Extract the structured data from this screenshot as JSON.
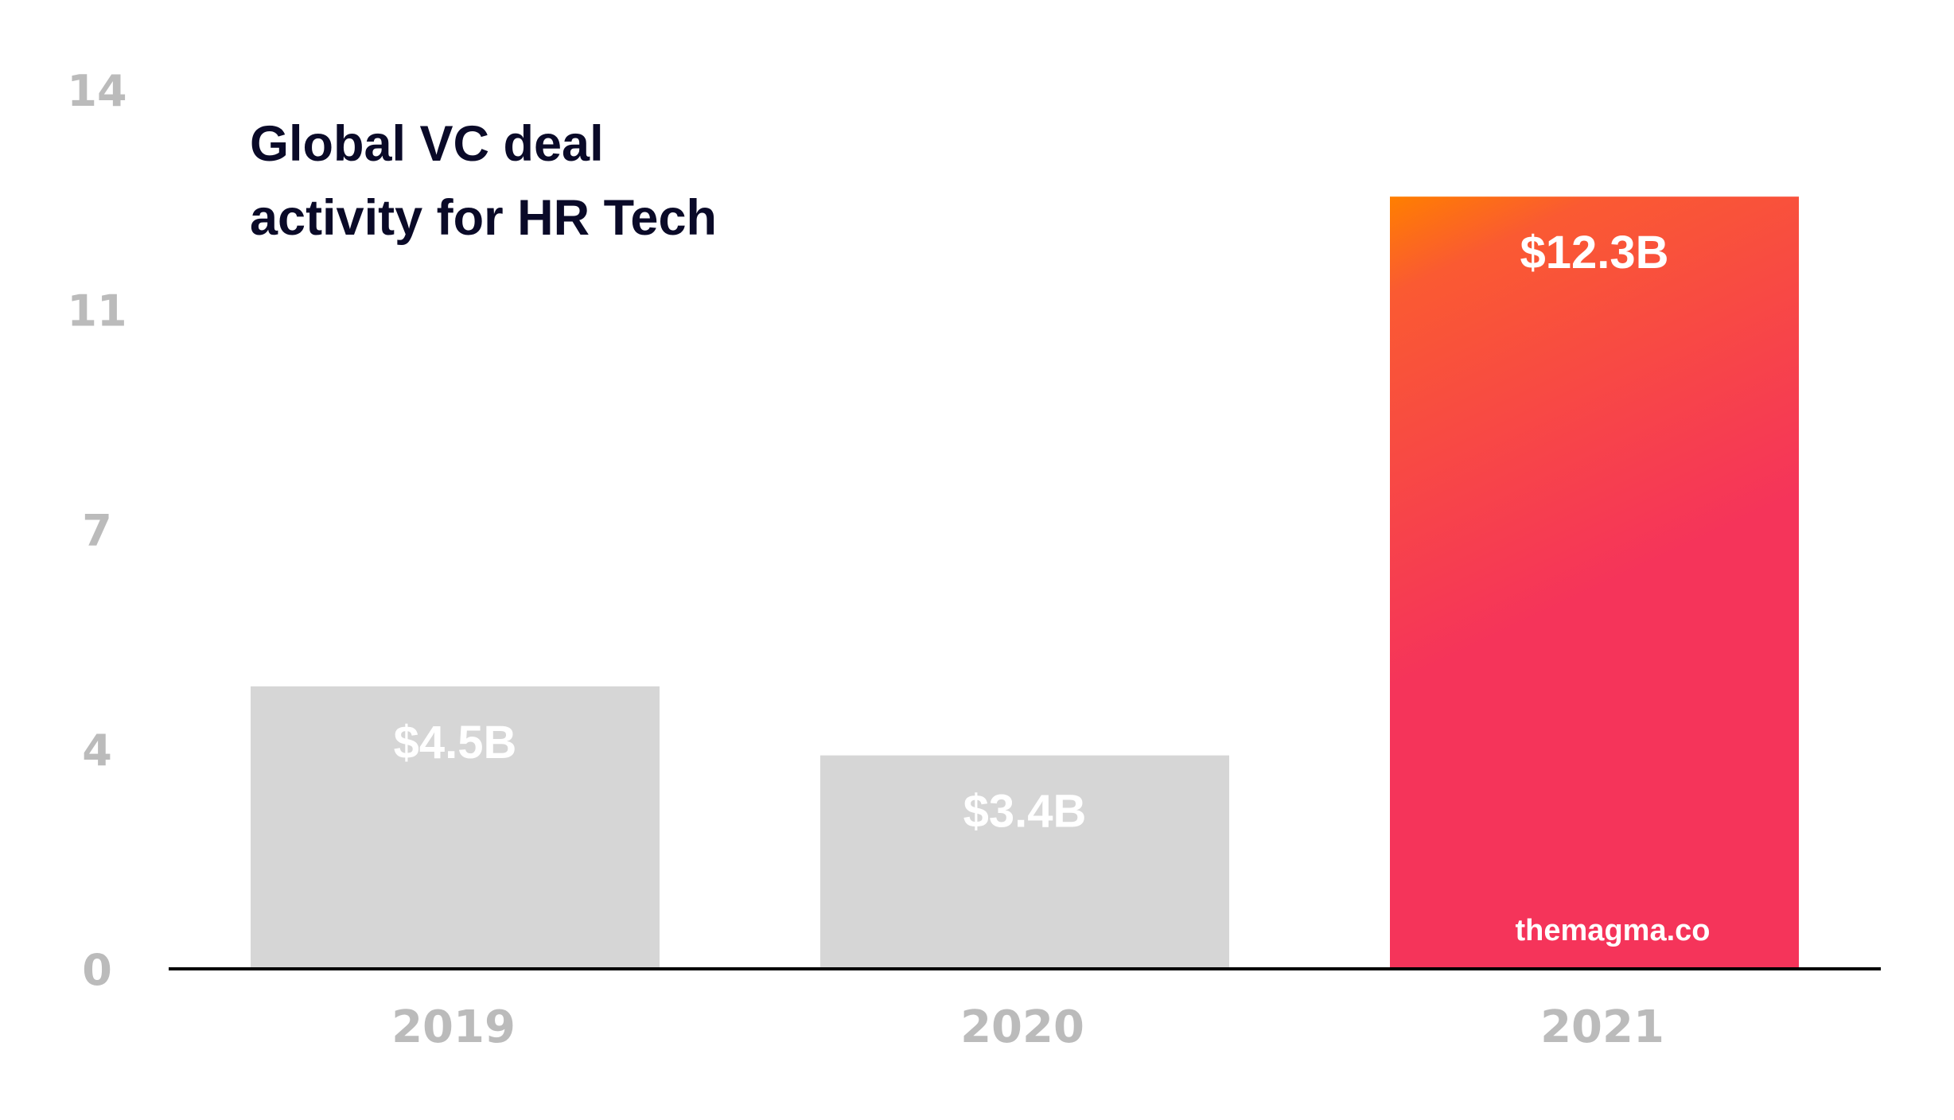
{
  "chart_data": {
    "type": "bar",
    "title": "Global VC deal activity for HR Tech",
    "title_lines": [
      "Global VC deal",
      "activity for HR Tech"
    ],
    "xlabel": "",
    "ylabel": "",
    "categories": [
      "2019",
      "2020",
      "2021"
    ],
    "values": [
      4.5,
      3.4,
      12.3
    ],
    "data_labels": [
      "$4.5B",
      "$3.4B",
      "$12.3B"
    ],
    "units": "USD billions",
    "ylim": [
      0,
      14
    ],
    "yticks": [
      0,
      3.5,
      7,
      10.5,
      14
    ],
    "ytick_labels": [
      "0",
      "4",
      "7",
      "11",
      "14"
    ],
    "grid": false,
    "legend": "none",
    "bar_colors": [
      "#D6D6D6",
      "#D6D6D6",
      "gradient"
    ],
    "highlight_gradient": [
      "#FF7F00",
      "#FA5A32",
      "#F5345A"
    ],
    "watermark": "themagma.co",
    "axis_color": "#000000",
    "tick_color": "#BBBBBB",
    "title_color": "#0A0A28"
  }
}
